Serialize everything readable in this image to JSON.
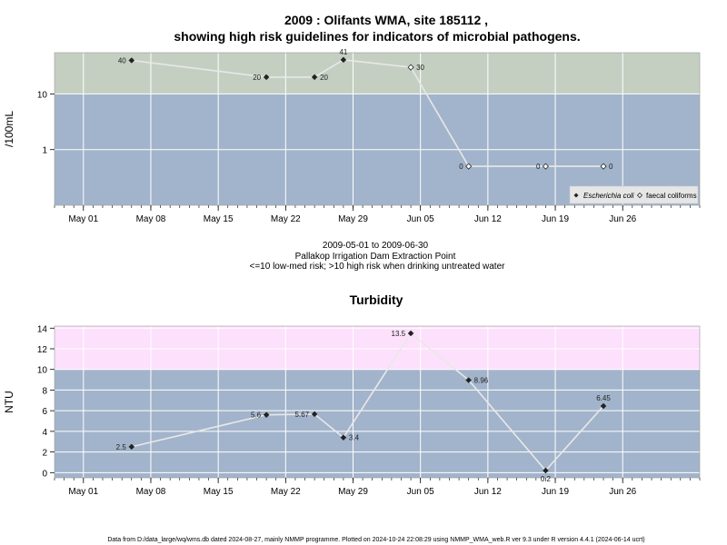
{
  "chart_data": [
    {
      "type": "line",
      "title": "2009 : Olifants WMA, site 185112 ,",
      "subtitle": "showing high risk guidelines for indicators of microbial pathogens.",
      "xlabel": "",
      "ylabel": "/100mL",
      "yscale": "log",
      "ylim": [
        0.1,
        55
      ],
      "xlim": [
        "2009-04-28",
        "2009-07-04"
      ],
      "x_ticks": [
        "May 01",
        "May 08",
        "May 15",
        "May 22",
        "May 29",
        "Jun 05",
        "Jun 12",
        "Jun 19",
        "Jun 26"
      ],
      "x_tick_dates": [
        "2009-05-01",
        "2009-05-08",
        "2009-05-15",
        "2009-05-22",
        "2009-05-29",
        "2009-06-05",
        "2009-06-12",
        "2009-06-19",
        "2009-06-26"
      ],
      "y_ticks": [
        "1",
        "10"
      ],
      "y_tick_values": [
        1,
        10
      ],
      "threshold": 10,
      "band_colors": {
        "high": "#c4cfc2",
        "low": "#a2b4cb"
      },
      "grid": true,
      "legend_position": "bottom-right",
      "legend": [
        "Escherichia coli",
        "faecal coliforms"
      ],
      "series": [
        {
          "name": "Escherichia coli",
          "marker": "filled-diamond",
          "points": [
            {
              "x": "2009-05-06",
              "y": 40,
              "label": "40",
              "side": "left"
            },
            {
              "x": "2009-05-20",
              "y": 20,
              "label": "20",
              "side": "left"
            },
            {
              "x": "2009-05-25",
              "y": 20,
              "label": "20",
              "side": "right"
            },
            {
              "x": "2009-05-28",
              "y": 41,
              "label": "41",
              "side": "top"
            }
          ]
        },
        {
          "name": "faecal coliforms",
          "marker": "open-diamond",
          "points": [
            {
              "x": "2009-06-04",
              "y": 30,
              "label": "30",
              "side": "right"
            },
            {
              "x": "2009-06-10",
              "y": 0.5,
              "label": "0",
              "side": "left"
            },
            {
              "x": "2009-06-18",
              "y": 0.5,
              "label": "0",
              "side": "left"
            },
            {
              "x": "2009-06-24",
              "y": 0.5,
              "label": "0",
              "side": "right"
            }
          ]
        }
      ],
      "line_order": [
        {
          "x": "2009-05-06",
          "y": 40
        },
        {
          "x": "2009-05-20",
          "y": 20
        },
        {
          "x": "2009-05-25",
          "y": 20
        },
        {
          "x": "2009-05-28",
          "y": 41
        },
        {
          "x": "2009-06-04",
          "y": 30
        },
        {
          "x": "2009-06-10",
          "y": 0.5
        },
        {
          "x": "2009-06-18",
          "y": 0.5
        },
        {
          "x": "2009-06-24",
          "y": 0.5
        }
      ],
      "caption": [
        "2009-05-01 to 2009-06-30",
        "Pallakop Irrigation Dam Extraction Point",
        "<=10 low-med risk; >10 high risk when drinking untreated water"
      ]
    },
    {
      "type": "line",
      "title": "Turbidity",
      "xlabel": "",
      "ylabel": "NTU",
      "yscale": "linear",
      "ylim": [
        -0.5,
        14.2
      ],
      "xlim": [
        "2009-04-28",
        "2009-07-04"
      ],
      "x_ticks": [
        "May 01",
        "May 08",
        "May 15",
        "May 22",
        "May 29",
        "Jun 05",
        "Jun 12",
        "Jun 19",
        "Jun 26"
      ],
      "x_tick_dates": [
        "2009-05-01",
        "2009-05-08",
        "2009-05-15",
        "2009-05-22",
        "2009-05-29",
        "2009-06-05",
        "2009-06-12",
        "2009-06-19",
        "2009-06-26"
      ],
      "y_ticks": [
        "0",
        "2",
        "4",
        "6",
        "8",
        "10",
        "12",
        "14"
      ],
      "y_tick_values": [
        0,
        2,
        4,
        6,
        8,
        10,
        12,
        14
      ],
      "threshold": 10,
      "band_colors": {
        "high": "#fde0fc",
        "low": "#a2b4cb"
      },
      "grid": true,
      "series": [
        {
          "name": "",
          "marker": "filled-diamond",
          "points": [
            {
              "x": "2009-05-06",
              "y": 2.5,
              "label": "2.5",
              "side": "left"
            },
            {
              "x": "2009-05-20",
              "y": 5.6,
              "label": "5.6",
              "side": "left"
            },
            {
              "x": "2009-05-25",
              "y": 5.67,
              "label": "5.67",
              "side": "left"
            },
            {
              "x": "2009-05-28",
              "y": 3.4,
              "label": "3.4",
              "side": "right"
            },
            {
              "x": "2009-06-04",
              "y": 13.5,
              "label": "13.5",
              "side": "left"
            },
            {
              "x": "2009-06-10",
              "y": 8.96,
              "label": "8.96",
              "side": "right"
            },
            {
              "x": "2009-06-18",
              "y": 0.2,
              "label": "0.2",
              "side": "bottom"
            },
            {
              "x": "2009-06-24",
              "y": 6.45,
              "label": "6.45",
              "side": "top"
            }
          ]
        }
      ]
    }
  ],
  "footer": "Data from D:/data_large/wq/wms.db dated 2024-08-27, mainly NMMP programme. Plotted on 2024-10-24 22:08:29 using NMMP_WMA_web.R ver 9.3 under R version 4.4.1 (2024-06-14 ucrt)"
}
